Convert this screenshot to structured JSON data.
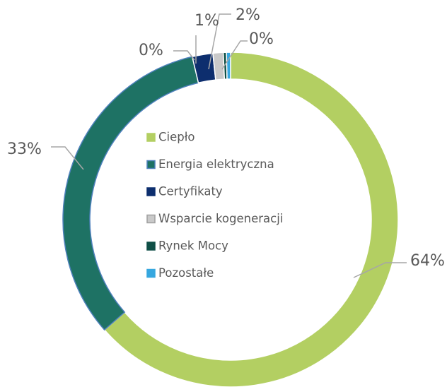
{
  "chart_data": {
    "type": "donut",
    "categories": [
      "Ciepło",
      "Energia elektryczna",
      "Certyfikaty",
      "Wsparcie kogeneracji",
      "Rynek Mocy",
      "Pozostałe"
    ],
    "values": [
      64,
      33,
      2,
      1,
      0.3,
      0.4
    ],
    "value_labels": [
      "64%",
      "33%",
      "2%",
      "1%",
      "0%",
      "0%"
    ],
    "colors": [
      "#b3cf62",
      "#1e7264",
      "#0d2e6e",
      "#c9c9c9",
      "#0f4f46",
      "#36a7df"
    ],
    "legend": "center"
  }
}
